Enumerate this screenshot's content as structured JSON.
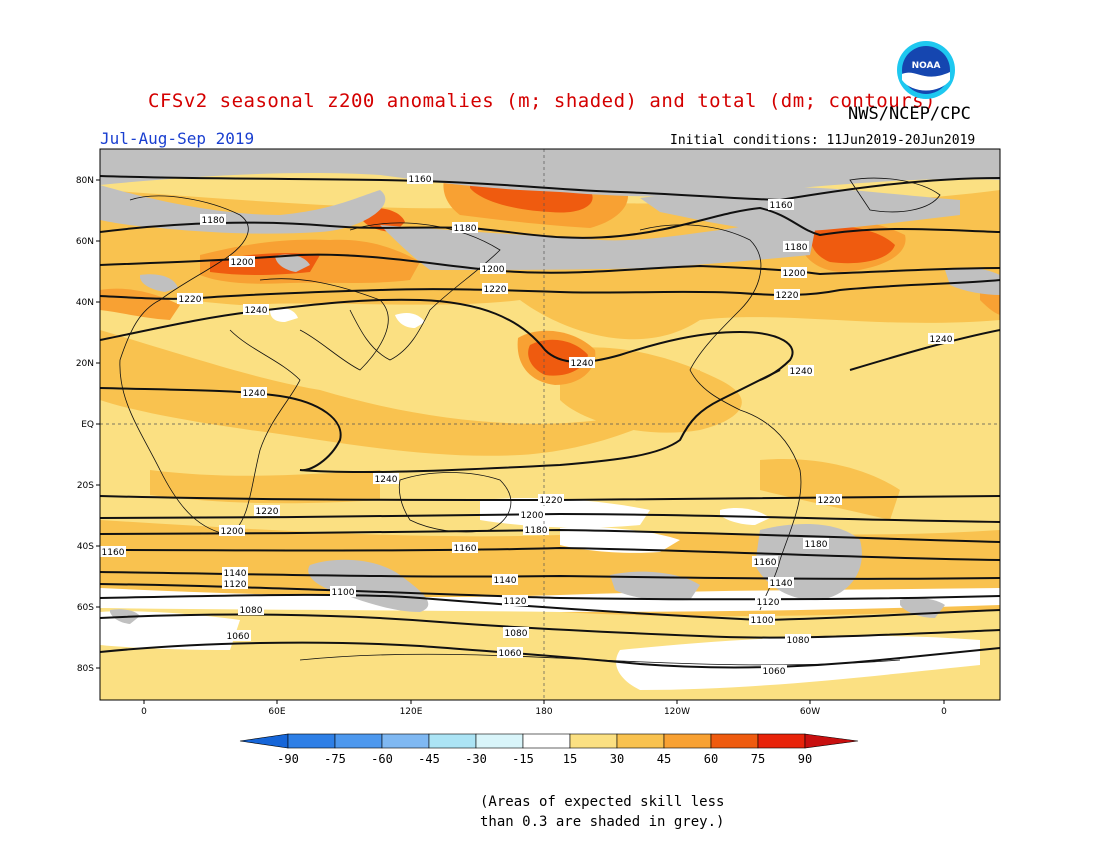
{
  "title": "CFSv2 seasonal z200 anomalies (m; shaded) and total (dm; contours)",
  "agency": "NWS/NCEP/CPC",
  "logo_text": "NOAA",
  "season": "Jul-Aug-Sep 2019",
  "initial_conditions": "Initial conditions: 11Jun2019-20Jun2019",
  "lat_labels": [
    "80N",
    "60N",
    "40N",
    "20N",
    "EQ",
    "20S",
    "40S",
    "60S",
    "80S"
  ],
  "lon_labels": [
    "0",
    "60E",
    "120E",
    "180",
    "120W",
    "60W",
    "0"
  ],
  "colorbar": {
    "ticks": [
      "-90",
      "-75",
      "-60",
      "-45",
      "-30",
      "-15",
      "15",
      "30",
      "45",
      "60",
      "75",
      "90"
    ],
    "colors": [
      "#1565d8",
      "#2e7fe6",
      "#4d98ee",
      "#7fb8f2",
      "#ace4f5",
      "#d9f5fa",
      "#ffffff",
      "#fbe082",
      "#f9c24f",
      "#f8a133",
      "#ef5b0f",
      "#e8230a",
      "#c80f0f"
    ]
  },
  "contour_labels": [
    {
      "text": "1160"
    },
    {
      "text": "1160"
    },
    {
      "text": "1160"
    },
    {
      "text": "1160"
    },
    {
      "text": "1180"
    },
    {
      "text": "1180"
    },
    {
      "text": "1180"
    },
    {
      "text": "1180"
    },
    {
      "text": "1180"
    },
    {
      "text": "1200"
    },
    {
      "text": "1200"
    },
    {
      "text": "1200"
    },
    {
      "text": "1200"
    },
    {
      "text": "1200"
    },
    {
      "text": "1220"
    },
    {
      "text": "1220"
    },
    {
      "text": "1220"
    },
    {
      "text": "1220"
    },
    {
      "text": "1220"
    },
    {
      "text": "1240"
    },
    {
      "text": "1240"
    },
    {
      "text": "1240"
    },
    {
      "text": "1240"
    },
    {
      "text": "1240"
    },
    {
      "text": "1240"
    },
    {
      "text": "1160"
    },
    {
      "text": "1140"
    },
    {
      "text": "1140"
    },
    {
      "text": "1140"
    },
    {
      "text": "1120"
    },
    {
      "text": "1120"
    },
    {
      "text": "1120"
    },
    {
      "text": "1100"
    },
    {
      "text": "1100"
    },
    {
      "text": "1080"
    },
    {
      "text": "1080"
    },
    {
      "text": "1080"
    },
    {
      "text": "1060"
    },
    {
      "text": "1060"
    },
    {
      "text": "1060"
    },
    {
      "text": "1160"
    }
  ],
  "footnote_line1": "(Areas of expected skill less",
  "footnote_line2": "than 0.3 are shaded in grey.)"
}
